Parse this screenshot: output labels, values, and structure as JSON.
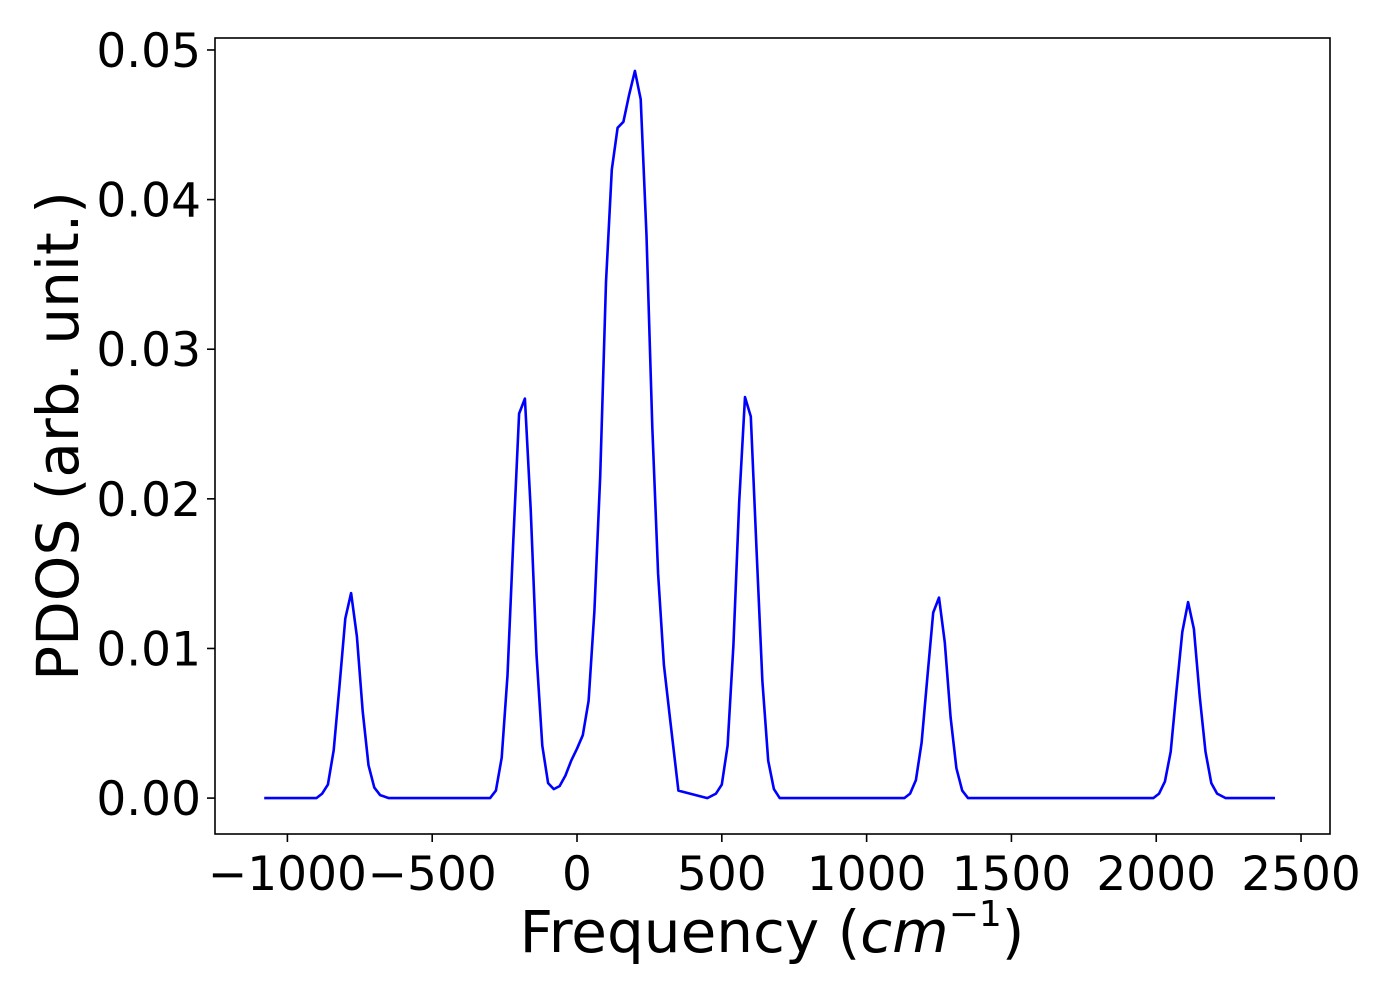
{
  "chart_data": {
    "type": "line",
    "title": "",
    "xlabel_main": "Frequency (",
    "xlabel_var": "cm",
    "xlabel_exp": "−1",
    "xlabel_close": ")",
    "ylabel": "PDOS (arb. unit.)",
    "xlim": [
      -1250,
      2600
    ],
    "ylim": [
      -0.0024,
      0.0508
    ],
    "xticks": [
      -1000,
      -500,
      0,
      500,
      1000,
      1500,
      2000,
      2500
    ],
    "xtick_labels": [
      "−1000",
      "−500",
      "0",
      "500",
      "1000",
      "1500",
      "2000",
      "2500"
    ],
    "yticks": [
      0.0,
      0.01,
      0.02,
      0.03,
      0.04,
      0.05
    ],
    "ytick_labels": [
      "0.00",
      "0.01",
      "0.02",
      "0.03",
      "0.04",
      "0.05"
    ],
    "grid": false,
    "series": [
      {
        "color": "#0000ff",
        "x": [
          -1080,
          -900,
          -880,
          -860,
          -840,
          -820,
          -800,
          -780,
          -760,
          -740,
          -720,
          -700,
          -680,
          -650,
          -600,
          -300,
          -280,
          -260,
          -240,
          -220,
          -200,
          -180,
          -160,
          -140,
          -120,
          -100,
          -80,
          -60,
          -40,
          -20,
          0,
          20,
          40,
          60,
          80,
          100,
          120,
          140,
          160,
          180,
          200,
          220,
          240,
          260,
          280,
          300,
          320,
          350,
          450,
          480,
          500,
          520,
          540,
          560,
          580,
          600,
          620,
          640,
          660,
          680,
          700,
          1130,
          1150,
          1170,
          1190,
          1210,
          1230,
          1250,
          1270,
          1290,
          1310,
          1330,
          1350,
          1990,
          2010,
          2030,
          2050,
          2070,
          2090,
          2110,
          2130,
          2150,
          2170,
          2190,
          2210,
          2240,
          2410
        ],
        "y": [
          0,
          0,
          0.0003,
          0.0009,
          0.0032,
          0.0075,
          0.012,
          0.0137,
          0.0108,
          0.0058,
          0.0022,
          0.0007,
          0.0002,
          0,
          0,
          0,
          0.0005,
          0.0027,
          0.0082,
          0.0172,
          0.0257,
          0.0267,
          0.0193,
          0.0096,
          0.0035,
          0.001,
          0.0006,
          0.0008,
          0.0015,
          0.0025,
          0.0033,
          0.0042,
          0.0065,
          0.0125,
          0.0215,
          0.0345,
          0.042,
          0.0448,
          0.0452,
          0.047,
          0.0486,
          0.0467,
          0.0376,
          0.0248,
          0.015,
          0.0089,
          0.0055,
          0.0005,
          0,
          0.0003,
          0.0009,
          0.0035,
          0.0102,
          0.0198,
          0.0268,
          0.0255,
          0.0165,
          0.0078,
          0.0025,
          0.0006,
          0,
          0,
          0.0003,
          0.0012,
          0.0037,
          0.0081,
          0.0124,
          0.0134,
          0.0104,
          0.0054,
          0.002,
          0.0005,
          0,
          0,
          0.0003,
          0.0011,
          0.0031,
          0.0072,
          0.0111,
          0.0131,
          0.0113,
          0.0068,
          0.0031,
          0.001,
          0.0003,
          0,
          0
        ]
      }
    ]
  }
}
